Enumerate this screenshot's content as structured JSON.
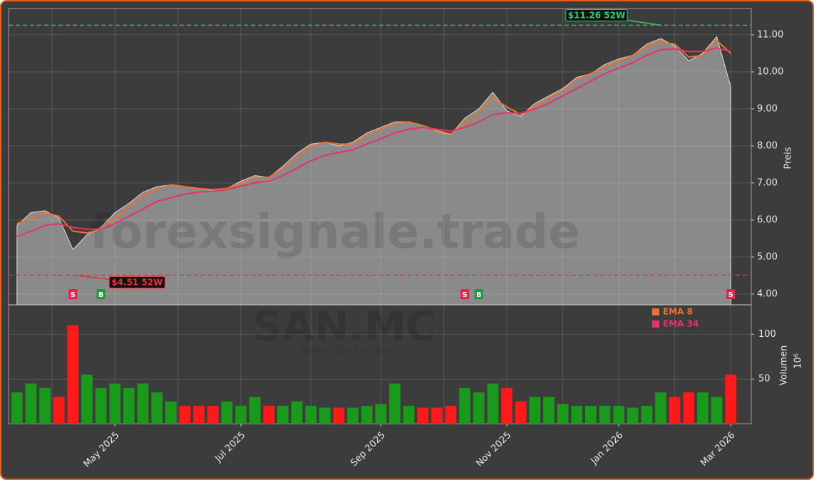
{
  "chart_data": {
    "type": "price-volume",
    "watermark": "forexsignale.trade",
    "symbol": "SAN.MC",
    "company": "Banco Santander",
    "ylabel": "Preis",
    "categories": [
      null,
      null,
      null,
      null,
      null,
      null,
      null,
      "May 2025",
      null,
      null,
      null,
      null,
      null,
      null,
      null,
      null,
      "Jul 2025",
      null,
      null,
      null,
      null,
      null,
      null,
      null,
      null,
      null,
      "Sep 2025",
      null,
      null,
      null,
      null,
      null,
      null,
      null,
      null,
      "Nov 2025",
      null,
      null,
      null,
      null,
      null,
      null,
      null,
      "Jan 2026",
      null,
      null,
      null,
      null,
      null,
      null,
      null,
      "Mar 2026"
    ],
    "price": {
      "color": "#8a8a8a",
      "values": [
        5.85,
        6.2,
        6.25,
        6.05,
        5.2,
        5.6,
        5.8,
        6.2,
        6.45,
        6.75,
        6.9,
        6.95,
        6.9,
        6.85,
        6.8,
        6.85,
        7.05,
        7.2,
        7.15,
        7.45,
        7.8,
        8.05,
        8.1,
        8.0,
        8.1,
        8.35,
        8.5,
        8.65,
        8.65,
        8.55,
        8.4,
        8.3,
        8.75,
        9.0,
        9.45,
        8.95,
        8.8,
        9.15,
        9.35,
        9.55,
        9.85,
        9.95,
        10.2,
        10.35,
        10.45,
        10.75,
        10.9,
        10.7,
        10.3,
        10.5,
        10.95,
        9.6
      ]
    },
    "series": [
      {
        "name": "EMA 8",
        "color": "#f07030",
        "values": [
          5.9,
          6.05,
          6.2,
          6.1,
          5.7,
          5.65,
          5.75,
          6.05,
          6.35,
          6.65,
          6.85,
          6.95,
          6.9,
          6.85,
          6.82,
          6.85,
          7.0,
          7.15,
          7.15,
          7.4,
          7.7,
          8.0,
          8.1,
          8.05,
          8.05,
          8.3,
          8.45,
          8.6,
          8.65,
          8.55,
          8.42,
          8.32,
          8.6,
          8.9,
          9.3,
          9.05,
          8.85,
          9.05,
          9.3,
          9.5,
          9.8,
          9.95,
          10.15,
          10.3,
          10.45,
          10.7,
          10.8,
          10.75,
          10.4,
          10.45,
          10.85,
          10.5
        ]
      },
      {
        "name": "EMA 34",
        "color": "#e8306a",
        "values": [
          5.55,
          5.7,
          5.85,
          5.9,
          5.8,
          5.75,
          5.75,
          5.9,
          6.1,
          6.3,
          6.5,
          6.6,
          6.7,
          6.75,
          6.78,
          6.82,
          6.92,
          7.0,
          7.05,
          7.2,
          7.4,
          7.6,
          7.75,
          7.82,
          7.9,
          8.05,
          8.2,
          8.35,
          8.45,
          8.5,
          8.45,
          8.4,
          8.5,
          8.65,
          8.85,
          8.9,
          8.88,
          9.0,
          9.15,
          9.35,
          9.55,
          9.75,
          9.95,
          10.1,
          10.25,
          10.45,
          10.6,
          10.62,
          10.55,
          10.55,
          10.65,
          10.55
        ]
      }
    ],
    "ylim": [
      3.71,
      11.71
    ],
    "yticks": [
      {
        "value": 4,
        "label": "4.00"
      },
      {
        "value": 5,
        "label": "5.00"
      },
      {
        "value": 6,
        "label": "6.00"
      },
      {
        "value": 7,
        "label": "7.00"
      },
      {
        "value": 8,
        "label": "8.00"
      },
      {
        "value": 9,
        "label": "9.00"
      },
      {
        "value": 10,
        "label": "10.00"
      },
      {
        "value": 11,
        "label": "11.00"
      }
    ],
    "high": {
      "value": 11.26,
      "label": "$11.26 52W",
      "index": 46,
      "color": "#2ecc71"
    },
    "low": {
      "value": 4.51,
      "label": "$4.51 52W",
      "index": 4,
      "color": "#e8303a"
    },
    "signals": [
      {
        "label": "S",
        "index": 4
      },
      {
        "label": "B",
        "index": 6
      },
      {
        "label": "S",
        "index": 32
      },
      {
        "label": "B",
        "index": 33
      },
      {
        "label": "S",
        "index": 51
      }
    ],
    "volume": {
      "ylabel": "Volumen",
      "unit": "10⁶",
      "up_color": "#1a9a1a",
      "down_color": "#ff1a1a",
      "values": [
        35,
        45,
        40,
        30,
        110,
        55,
        40,
        45,
        40,
        45,
        35,
        25,
        20,
        20,
        20,
        25,
        20,
        30,
        20,
        20,
        25,
        20,
        18,
        18,
        18,
        20,
        22,
        45,
        20,
        18,
        18,
        20,
        40,
        35,
        45,
        40,
        25,
        30,
        30,
        22,
        20,
        20,
        20,
        20,
        18,
        20,
        35,
        30,
        35,
        35,
        30,
        55
      ],
      "ylim": [
        0,
        133
      ],
      "yticks": [
        50,
        100
      ]
    },
    "grid": true
  }
}
